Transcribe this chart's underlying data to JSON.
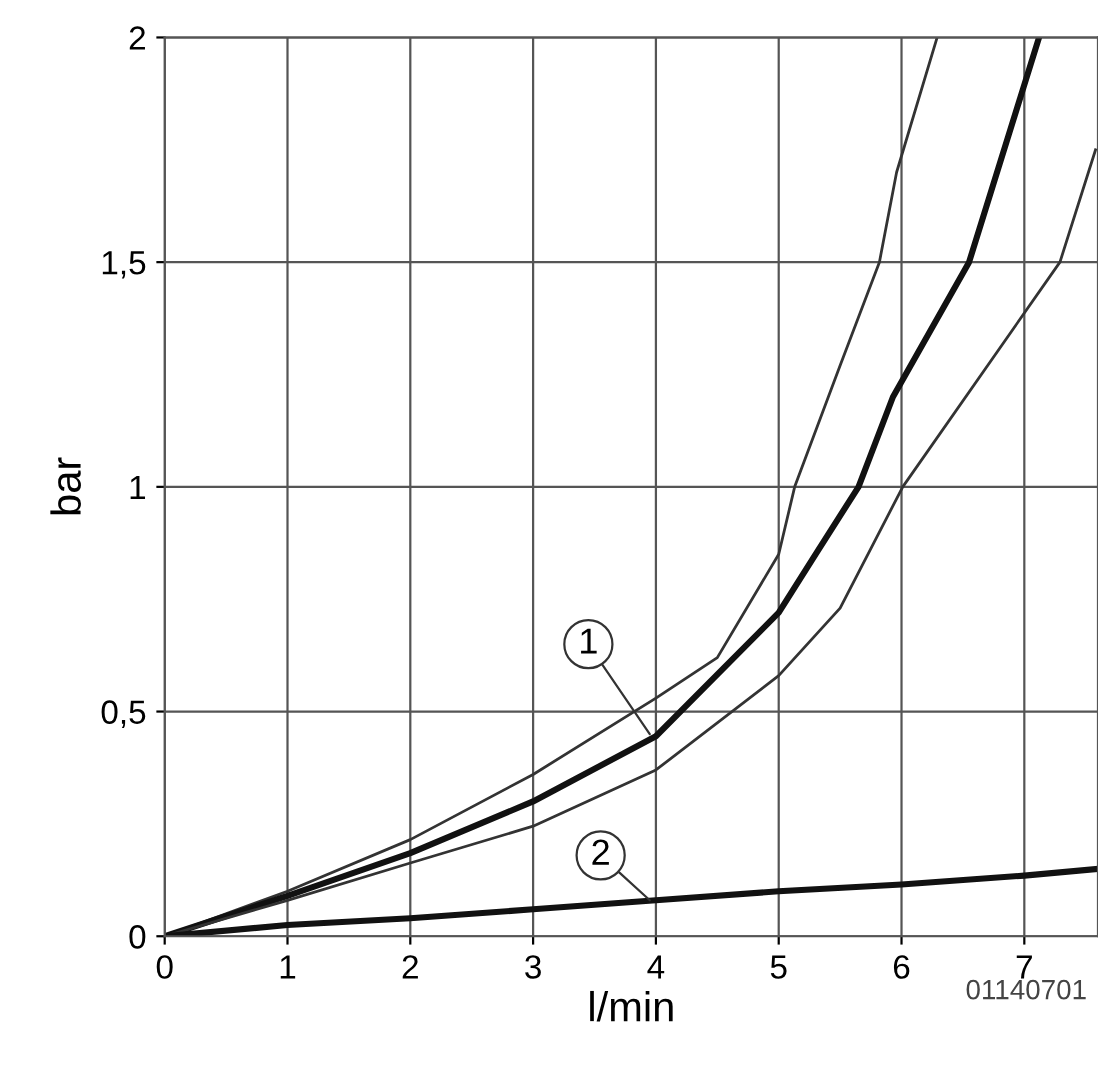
{
  "chart_data": {
    "type": "line",
    "xlabel": "l/min",
    "ylabel": "bar",
    "xlim": [
      0,
      7.6
    ],
    "ylim": [
      0,
      2
    ],
    "xticks": [
      0,
      1,
      2,
      3,
      4,
      5,
      6,
      7
    ],
    "yticks": [
      0,
      {
        "value": 0.5,
        "label": "0,5"
      },
      1,
      {
        "value": 1.5,
        "label": "1,5"
      },
      2
    ],
    "grid": true,
    "legend": false,
    "marker": "none",
    "line_style": "solid",
    "series": [
      {
        "color": "#333333",
        "x": [
          0,
          1,
          2,
          3,
          4,
          4.5,
          5,
          5.13,
          5.5,
          5.82,
          5.96,
          6.29
        ],
        "values": [
          0,
          0.1,
          0.215,
          0.36,
          0.53,
          0.62,
          0.85,
          1,
          1.27,
          1.5,
          1.7,
          2
        ]
      },
      {
        "color": "#111111",
        "x": [
          0,
          1,
          2,
          3,
          4,
          5,
          5.3,
          5.65,
          5.93,
          6.55,
          7.12
        ],
        "values": [
          0,
          0.09,
          0.185,
          0.3,
          0.445,
          0.72,
          0.85,
          1,
          1.2,
          1.5,
          2
        ]
      },
      {
        "color": "#333333",
        "x": [
          0,
          1,
          2,
          3,
          4,
          5,
          5.5,
          6.01,
          7.29,
          7.58
        ],
        "values": [
          0,
          0.08,
          0.163,
          0.245,
          0.37,
          0.58,
          0.73,
          1,
          1.5,
          1.75
        ]
      },
      {
        "color": "#111111",
        "x": [
          0,
          1,
          2,
          3,
          4,
          5,
          6,
          7,
          7.6
        ],
        "values": [
          0,
          0.025,
          0.04,
          0.06,
          0.08,
          0.1,
          0.115,
          0.135,
          0.15
        ]
      }
    ],
    "annotations": [
      {
        "text": "1",
        "x": 3.95,
        "y": 0.45
      },
      {
        "text": "2",
        "x": 3.95,
        "y": 0.08
      },
      "01140701"
    ]
  }
}
